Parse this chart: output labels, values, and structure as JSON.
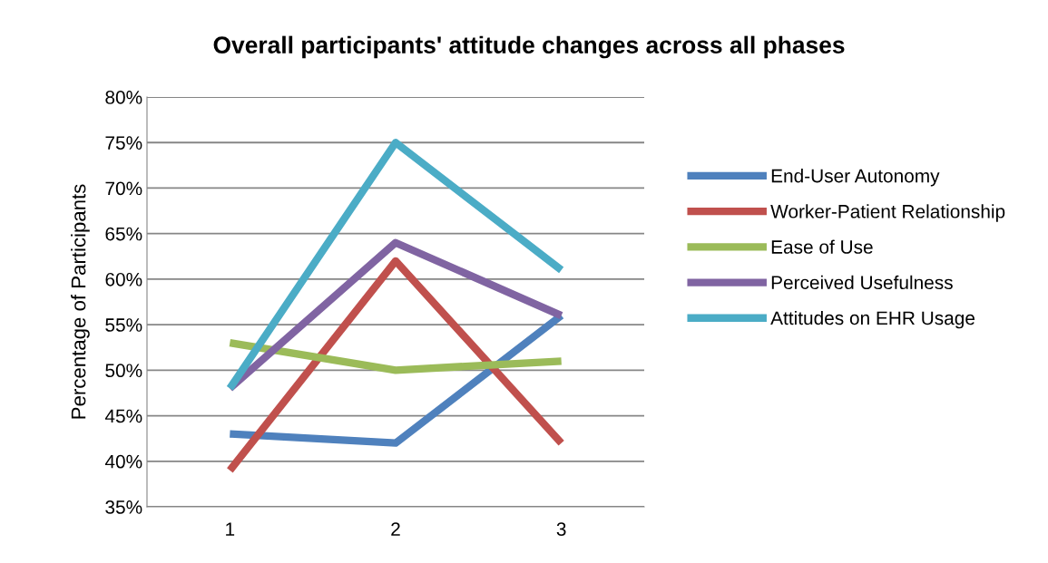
{
  "chart_data": {
    "type": "line",
    "title": "Overall participants' attitude changes across all phases",
    "ylabel": "Percentage of Participants",
    "categories": [
      "1",
      "2",
      "3"
    ],
    "series": [
      {
        "name": "End-User Autonomy",
        "color": "#4f81bd",
        "values": [
          43,
          42,
          56
        ]
      },
      {
        "name": "Worker-Patient Relationship",
        "color": "#c0504d",
        "values": [
          39,
          62,
          42
        ]
      },
      {
        "name": "Ease of Use",
        "color": "#9bbb59",
        "values": [
          53,
          50,
          51
        ]
      },
      {
        "name": "Perceived Usefulness",
        "color": "#8064a2",
        "values": [
          48,
          64,
          56
        ]
      },
      {
        "name": "Attitudes on EHR Usage",
        "color": "#4bacc6",
        "values": [
          48,
          75,
          61
        ]
      }
    ],
    "ylim": [
      35,
      80
    ],
    "yticks": [
      {
        "value": 35,
        "label": "35%"
      },
      {
        "value": 40,
        "label": "40%"
      },
      {
        "value": 45,
        "label": "45%"
      },
      {
        "value": 50,
        "label": "50%"
      },
      {
        "value": 55,
        "label": "55%"
      },
      {
        "value": 60,
        "label": "60%"
      },
      {
        "value": 65,
        "label": "65%"
      },
      {
        "value": 70,
        "label": "70%"
      },
      {
        "value": 75,
        "label": "75%"
      },
      {
        "value": 80,
        "label": "80%"
      }
    ],
    "grid": "y",
    "legend": "right",
    "marker": "none",
    "line_style": "solid"
  }
}
